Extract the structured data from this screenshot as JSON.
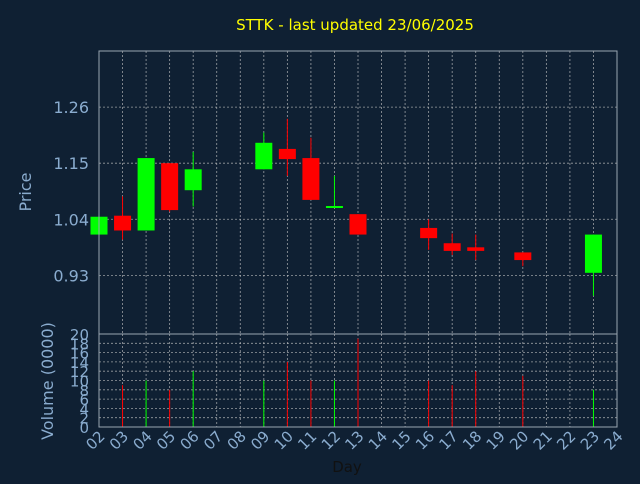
{
  "chart_data": {
    "type": "candlestick",
    "title": "STTK - last updated 23/06/2025",
    "xlabel": "Day",
    "price_panel": {
      "ylabel": "Price",
      "yticks": [
        "0.93",
        "1.04",
        "1.15",
        "1.26"
      ],
      "ytick_values": [
        0.93,
        1.04,
        1.15,
        1.26
      ],
      "ylim": [
        0.815,
        1.37
      ]
    },
    "volume_panel": {
      "ylabel": "Volume (0000)",
      "yticks": [
        "0",
        "2",
        "4",
        "6",
        "8",
        "10",
        "12",
        "14",
        "16",
        "18",
        "20"
      ],
      "ylim": [
        0,
        20
      ]
    },
    "x_ticks": [
      "02",
      "03",
      "04",
      "05",
      "06",
      "07",
      "08",
      "09",
      "10",
      "11",
      "12",
      "13",
      "14",
      "15",
      "16",
      "17",
      "18",
      "19",
      "20",
      "21",
      "22",
      "23",
      "24"
    ],
    "grid": true,
    "colors": {
      "background": "#0f2033",
      "up": "#00ff00",
      "down": "#ff0000",
      "grid": "#c8c8c8",
      "axis_text": "#8aaccf",
      "title": "#ffff00"
    },
    "candles": [
      {
        "day": "02",
        "open": 1.01,
        "high": 1.045,
        "low": 1.01,
        "close": 1.045,
        "volume": 0
      },
      {
        "day": "03",
        "open": 1.047,
        "high": 1.085,
        "low": 1.0,
        "close": 1.018,
        "volume": 9
      },
      {
        "day": "04",
        "open": 1.018,
        "high": 1.16,
        "low": 1.018,
        "close": 1.16,
        "volume": 10
      },
      {
        "day": "05",
        "open": 1.15,
        "high": 1.15,
        "low": 1.055,
        "close": 1.058,
        "volume": 8
      },
      {
        "day": "06",
        "open": 1.097,
        "high": 1.172,
        "low": 1.065,
        "close": 1.138,
        "volume": 12
      },
      {
        "day": "09",
        "open": 1.138,
        "high": 1.21,
        "low": 1.138,
        "close": 1.19,
        "volume": 10
      },
      {
        "day": "10",
        "open": 1.178,
        "high": 1.237,
        "low": 1.125,
        "close": 1.158,
        "volume": 14
      },
      {
        "day": "11",
        "open": 1.16,
        "high": 1.2,
        "low": 1.078,
        "close": 1.078,
        "volume": 10
      },
      {
        "day": "12",
        "open": 1.064,
        "high": 1.125,
        "low": 1.064,
        "close": 1.066,
        "volume": 10
      },
      {
        "day": "13",
        "open": 1.05,
        "high": 1.05,
        "low": 1.01,
        "close": 1.01,
        "volume": 19
      },
      {
        "day": "16",
        "open": 1.023,
        "high": 1.04,
        "low": 0.98,
        "close": 1.003,
        "volume": 10
      },
      {
        "day": "17",
        "open": 0.993,
        "high": 1.012,
        "low": 0.97,
        "close": 0.978,
        "volume": 9
      },
      {
        "day": "18",
        "open": 0.985,
        "high": 1.01,
        "low": 0.96,
        "close": 0.978,
        "volume": 12
      },
      {
        "day": "20",
        "open": 0.975,
        "high": 0.975,
        "low": 0.948,
        "close": 0.96,
        "volume": 11
      },
      {
        "day": "23",
        "open": 0.935,
        "high": 1.01,
        "low": 0.89,
        "close": 1.01,
        "volume": 8
      }
    ]
  }
}
